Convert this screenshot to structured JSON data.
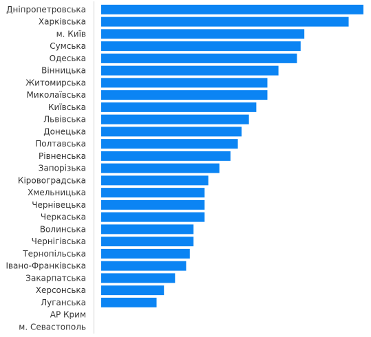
{
  "chart_data": {
    "type": "bar",
    "orientation": "horizontal",
    "bar_color": "#0b84f3",
    "categories": [
      "Дніпропетровська",
      "Харківська",
      "м. Київ",
      "Сумська",
      "Одеська",
      "Вінницька",
      "Житомирська",
      "Миколаївська",
      "Київська",
      "Львівська",
      "Донецька",
      "Полтавська",
      "Рівненська",
      "Запорізька",
      "Кіровоградська",
      "Хмельницька",
      "Чернівецька",
      "Черкаська",
      "Волинська",
      "Чернігівська",
      "Тернопільська",
      "Івано-Франківська",
      "Закарпатська",
      "Херсонська",
      "Луганська",
      "АР Крим",
      "м. Севастополь"
    ],
    "values": [
      71,
      67,
      55,
      54,
      53,
      48,
      45,
      45,
      42,
      40,
      38,
      37,
      35,
      32,
      29,
      28,
      28,
      28,
      25,
      25,
      24,
      23,
      20,
      17,
      15,
      0,
      0
    ],
    "xlim": [
      0,
      71
    ],
    "grid": false,
    "legend": "none"
  }
}
